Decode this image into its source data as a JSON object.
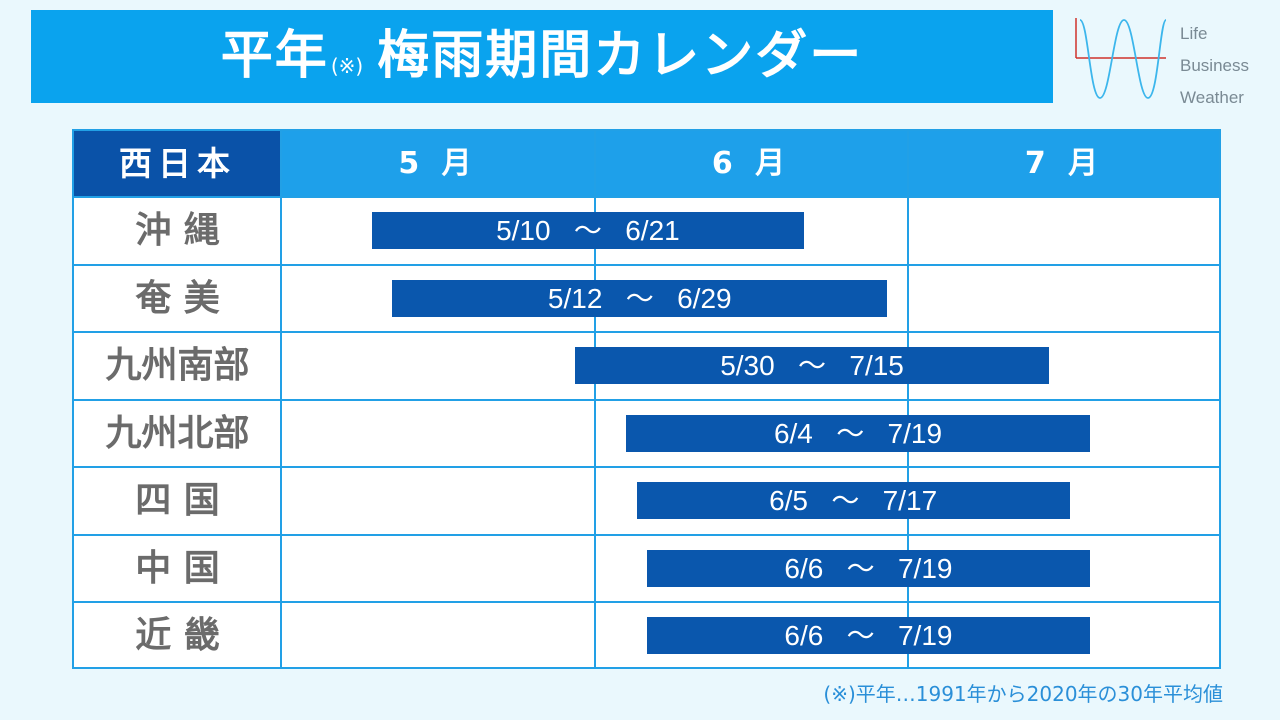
{
  "title": {
    "main": "平年",
    "note_mark": "(※)",
    "rest": "梅雨期間カレンダー"
  },
  "logo": {
    "lines": [
      "Life",
      "Business",
      "Weather"
    ]
  },
  "chart_data": {
    "type": "gantt",
    "title": "平年(※) 梅雨期間カレンダー",
    "region_group": "西日本",
    "months": [
      "5 月",
      "6 月",
      "7 月"
    ],
    "rows": [
      {
        "label": "沖 縄",
        "start": "5/10",
        "end": "6/21",
        "start_day": 10,
        "end_day": 52
      },
      {
        "label": "奄 美",
        "start": "5/12",
        "end": "6/29",
        "start_day": 12,
        "end_day": 60
      },
      {
        "label": "九州南部",
        "start": "5/30",
        "end": "7/15",
        "start_day": 30,
        "end_day": 76
      },
      {
        "label": "九州北部",
        "start": "6/4",
        "end": "7/19",
        "start_day": 35,
        "end_day": 80
      },
      {
        "label": "四 国",
        "start": "6/5",
        "end": "7/17",
        "start_day": 36,
        "end_day": 78
      },
      {
        "label": "中 国",
        "start": "6/6",
        "end": "7/19",
        "start_day": 37,
        "end_day": 80
      },
      {
        "label": "近 畿",
        "start": "6/6",
        "end": "7/19",
        "start_day": 37,
        "end_day": 80
      }
    ],
    "separator": "～"
  },
  "footnote": "(※)平年…1991年から2020年の30年平均値",
  "colors": {
    "title_bg": "#0aa3ee",
    "header_bg": "#1ea0ea",
    "corner_bg": "#0a52a8",
    "bar": "#0a57ad",
    "label": "#6b6b6b"
  }
}
